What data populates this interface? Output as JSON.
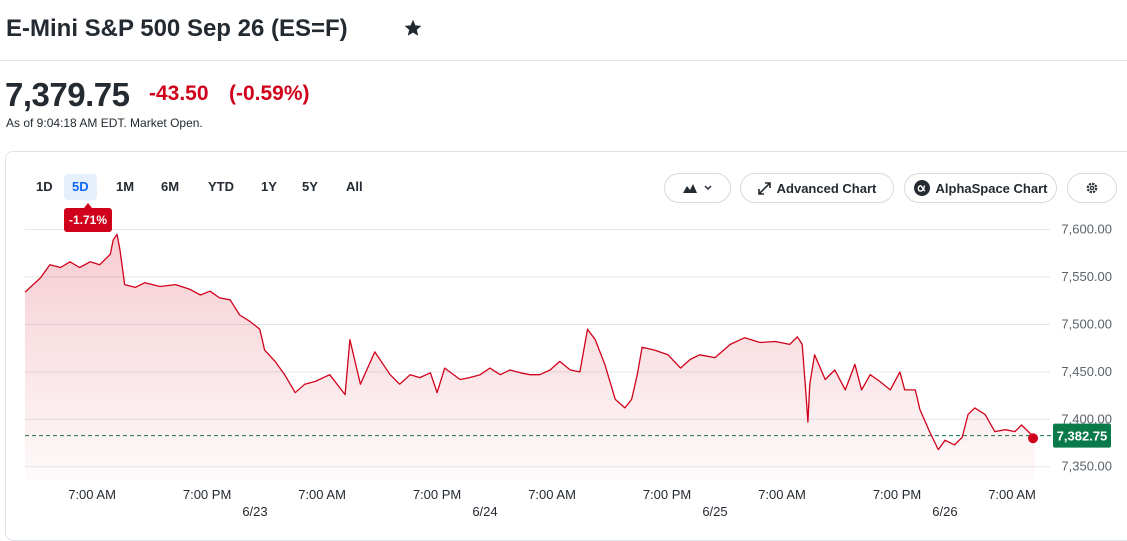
{
  "header": {
    "title": "E-Mini S&P 500 Sep 26 (ES=F)"
  },
  "quote": {
    "price": "7,379.75",
    "change": "-43.50",
    "change_percent": "(-0.59%)",
    "timestamp": "As of 9:04:18 AM EDT. Market Open."
  },
  "range_tabs": {
    "items": [
      "1D",
      "5D",
      "1M",
      "6M",
      "YTD",
      "1Y",
      "5Y",
      "All"
    ],
    "active": 1
  },
  "toolbar": {
    "advanced_chart": "Advanced Chart",
    "alphaspace_chart": "AlphaSpace Chart"
  },
  "chart_data": {
    "type": "line",
    "color": "#d0021b",
    "grid": true,
    "annotation": "-1.71%",
    "x": [
      0,
      1.6,
      2.6,
      3.7,
      4.7,
      5.7,
      6.8,
      7.8,
      8.9,
      9.2,
      9.6,
      9.9,
      10.4,
      11.5,
      12.5,
      14.1,
      15.7,
      17.2,
      18.3,
      19.3,
      20.3,
      21.4,
      22.4,
      23.5,
      24.5,
      25.0,
      26.1,
      27.1,
      28.2,
      29.2,
      30.3,
      31.8,
      33.4,
      33.9,
      35.0,
      36.5,
      38.1,
      39.1,
      40.2,
      41.2,
      42.3,
      43.0,
      43.8,
      45.4,
      46.4,
      47.5,
      48.5,
      49.6,
      50.6,
      51.7,
      52.7,
      53.7,
      54.8,
      55.8,
      56.9,
      57.9,
      58.7,
      59.5,
      60.5,
      61.6,
      62.6,
      63.3,
      63.9,
      64.4,
      65.7,
      67.1,
      68.4,
      69.4,
      70.4,
      72.0,
      73.6,
      75.1,
      76.7,
      78.3,
      79.8,
      80.6,
      81.1,
      81.5,
      81.7,
      81.9,
      82.4,
      83.5,
      84.5,
      85.6,
      86.6,
      87.3,
      88.2,
      89.2,
      90.3,
      91.3,
      91.8,
      92.9,
      93.4,
      94.4,
      95.3,
      96.0,
      97.0,
      97.8,
      98.4,
      99.1,
      100.2,
      101.2,
      102.3,
      103.3,
      104.0,
      105.4
    ],
    "values": [
      7534,
      7549,
      7563,
      7560,
      7566,
      7560,
      7566,
      7563,
      7574,
      7589,
      7595,
      7579,
      7542,
      7539,
      7544,
      7540,
      7542,
      7537,
      7531,
      7535,
      7528,
      7526,
      7510,
      7503,
      7495,
      7473,
      7461,
      7447,
      7428,
      7437,
      7440,
      7447,
      7426,
      7484,
      7437,
      7471,
      7447,
      7437,
      7447,
      7444,
      7449,
      7428,
      7454,
      7442,
      7444,
      7447,
      7454,
      7447,
      7452,
      7449,
      7447,
      7447,
      7452,
      7461,
      7452,
      7450,
      7495,
      7484,
      7458,
      7421,
      7412,
      7421,
      7447,
      7476,
      7473,
      7468,
      7454,
      7463,
      7468,
      7465,
      7479,
      7486,
      7481,
      7482,
      7479,
      7487,
      7479,
      7426,
      7397,
      7437,
      7468,
      7442,
      7452,
      7431,
      7458,
      7431,
      7447,
      7440,
      7431,
      7450,
      7431,
      7431,
      7410,
      7387,
      7368,
      7378,
      7373,
      7381,
      7405,
      7412,
      7405,
      7387,
      7389,
      7387,
      7394,
      7380
    ],
    "xlim": [
      0,
      105.5
    ],
    "ylim": [
      7336,
      7608
    ],
    "xticks": [
      {
        "value": 7,
        "label": "7:00 AM"
      },
      {
        "value": 19,
        "label": "7:00 PM"
      },
      {
        "value": 31,
        "label": "7:00 AM"
      },
      {
        "value": 43,
        "label": "7:00 PM"
      },
      {
        "value": 55,
        "label": "7:00 AM"
      },
      {
        "value": 67,
        "label": "7:00 PM"
      },
      {
        "value": 79,
        "label": "7:00 AM"
      },
      {
        "value": 91,
        "label": "7:00 PM"
      },
      {
        "value": 103,
        "label": "7:00 AM"
      }
    ],
    "date_ticks": [
      {
        "value": 24,
        "label": "6/23"
      },
      {
        "value": 48,
        "label": "6/24"
      },
      {
        "value": 72,
        "label": "6/25"
      },
      {
        "value": 96,
        "label": "6/26"
      }
    ],
    "yticks": [
      {
        "value": 7350,
        "label": "7,350.00"
      },
      {
        "value": 7400,
        "label": "7,400.00"
      },
      {
        "value": 7450,
        "label": "7,450.00"
      },
      {
        "value": 7500,
        "label": "7,500.00"
      },
      {
        "value": 7550,
        "label": "7,550.00"
      },
      {
        "value": 7600,
        "label": "7,600.00"
      }
    ],
    "reference_line": {
      "value": 7382.75,
      "label": "7,382.75",
      "color": "#0b7a4b"
    }
  }
}
